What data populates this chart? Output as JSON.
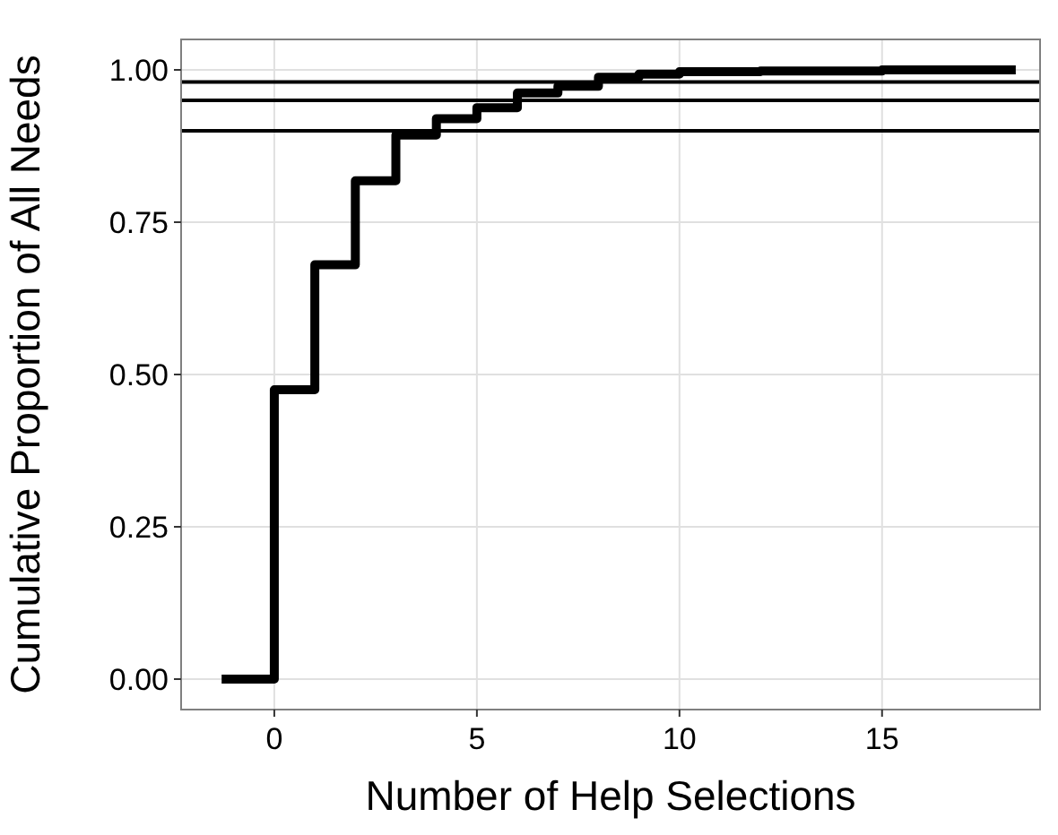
{
  "chart_data": {
    "type": "step",
    "xlabel": "Number of Help Selections",
    "ylabel": "Cumulative Proportion of All Needs",
    "x": [
      -1.3,
      0,
      1,
      2,
      3,
      4,
      5,
      6,
      7,
      8,
      9,
      10,
      12,
      15,
      18.3
    ],
    "series": [
      {
        "color": "#000000",
        "values": [
          0,
          0.475,
          0.68,
          0.818,
          0.893,
          0.92,
          0.938,
          0.962,
          0.973,
          0.988,
          0.993,
          0.997,
          0.998,
          1.0,
          1.0
        ]
      }
    ],
    "xlim": [
      -2.3,
      18.9
    ],
    "xticks": [
      0,
      5,
      10,
      15
    ],
    "ylim": [
      -0.05,
      1.05
    ],
    "yticks": [
      {
        "value": 0,
        "label": "0.00"
      },
      {
        "value": 0.25,
        "label": "0.25"
      },
      {
        "value": 0.5,
        "label": "0.50"
      },
      {
        "value": 0.75,
        "label": "0.75"
      },
      {
        "value": 1,
        "label": "1.00"
      }
    ],
    "ref_lines": [
      {
        "axis": "y",
        "value": 0.9,
        "color": "#000000"
      },
      {
        "axis": "y",
        "value": 0.95,
        "color": "#000000"
      },
      {
        "axis": "y",
        "value": 0.98,
        "color": "#000000"
      }
    ],
    "grid": true
  }
}
